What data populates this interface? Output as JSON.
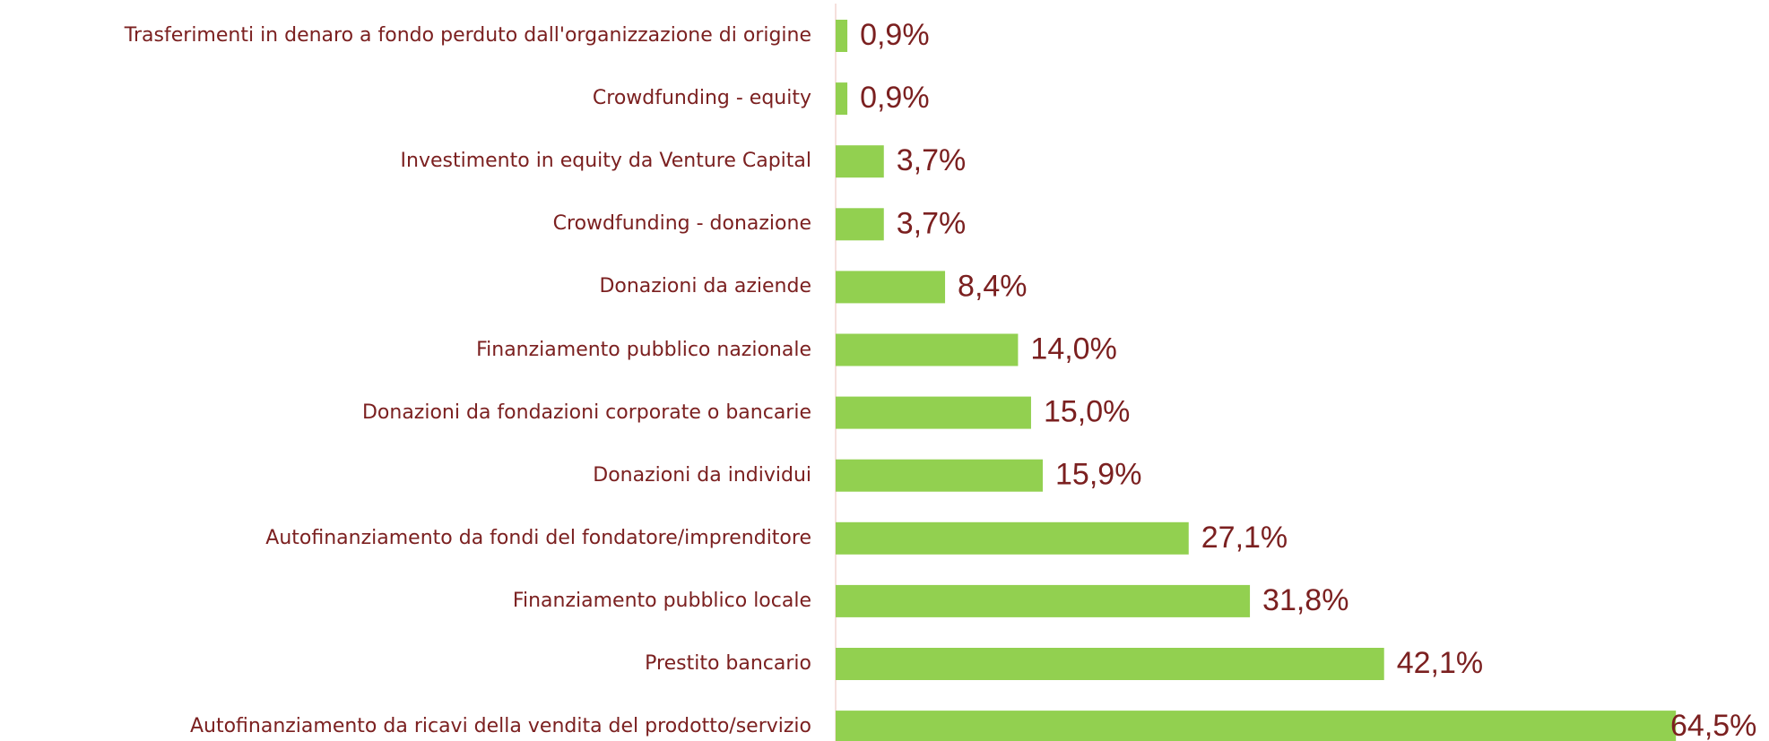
{
  "chart_data": {
    "type": "bar",
    "orientation": "horizontal",
    "categories": [
      "Trasferimenti in denaro a fondo perduto dall'organizzazione di origine",
      "Crowdfunding - equity",
      "Investimento in equity da Venture Capital",
      "Crowdfunding - donazione",
      "Donazioni da aziende",
      "Finanziamento pubblico nazionale ",
      "Donazioni da fondazioni corporate o bancarie",
      "Donazioni da individui",
      "Autofinanziamento da fondi del fondatore/imprenditore",
      "Finanziamento pubblico locale ",
      "Prestito bancario",
      "Autofinanziamento da ricavi della vendita del prodotto/servizio"
    ],
    "values": [
      0.9,
      0.9,
      3.7,
      3.7,
      8.4,
      14.0,
      15.0,
      15.9,
      27.1,
      31.8,
      42.1,
      64.5
    ],
    "value_labels": [
      "0,9%",
      "0,9%",
      "3,7%",
      "3,7%",
      "8,4%",
      "14,0%",
      "15,0%",
      "15,9%",
      "27,1%",
      "31,8%",
      "42,1%",
      "64,5%"
    ],
    "color": "#92d050"
  }
}
